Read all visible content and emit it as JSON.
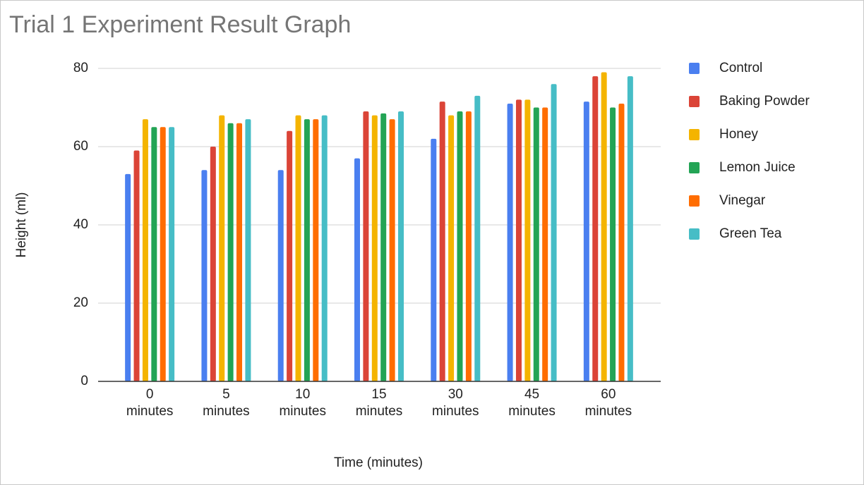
{
  "chart_data": {
    "type": "bar",
    "title": "Trial 1 Experiment Result Graph",
    "x_label": "Time (minutes)",
    "y_label": "Height (ml)",
    "categories": [
      "0 minutes",
      "5 minutes",
      "10 minutes",
      "15 minutes",
      "30 minutes",
      "45 minutes",
      "60 minutes"
    ],
    "series": [
      {
        "name": "Control",
        "color": "#4a7ff0",
        "values": [
          53,
          54,
          54,
          57,
          62,
          71,
          71.5
        ]
      },
      {
        "name": "Baking Powder",
        "color": "#db4437",
        "values": [
          59,
          60,
          64,
          69,
          71.5,
          72,
          78
        ]
      },
      {
        "name": "Honey",
        "color": "#f4b400",
        "values": [
          67,
          68,
          68,
          68,
          68,
          72,
          79
        ]
      },
      {
        "name": "Lemon Juice",
        "color": "#23a455",
        "values": [
          65,
          66,
          67,
          68.5,
          69,
          70,
          70
        ]
      },
      {
        "name": "Vinegar",
        "color": "#ff6d01",
        "values": [
          65,
          66,
          67,
          67,
          69,
          70,
          71
        ]
      },
      {
        "name": "Green Tea",
        "color": "#46bdc6",
        "values": [
          65,
          67,
          68,
          69,
          73,
          76,
          78
        ]
      }
    ],
    "ylim": [
      0,
      80
    ],
    "yticks": [
      0,
      20,
      40,
      60,
      80
    ],
    "grid": true,
    "legend": "right"
  }
}
